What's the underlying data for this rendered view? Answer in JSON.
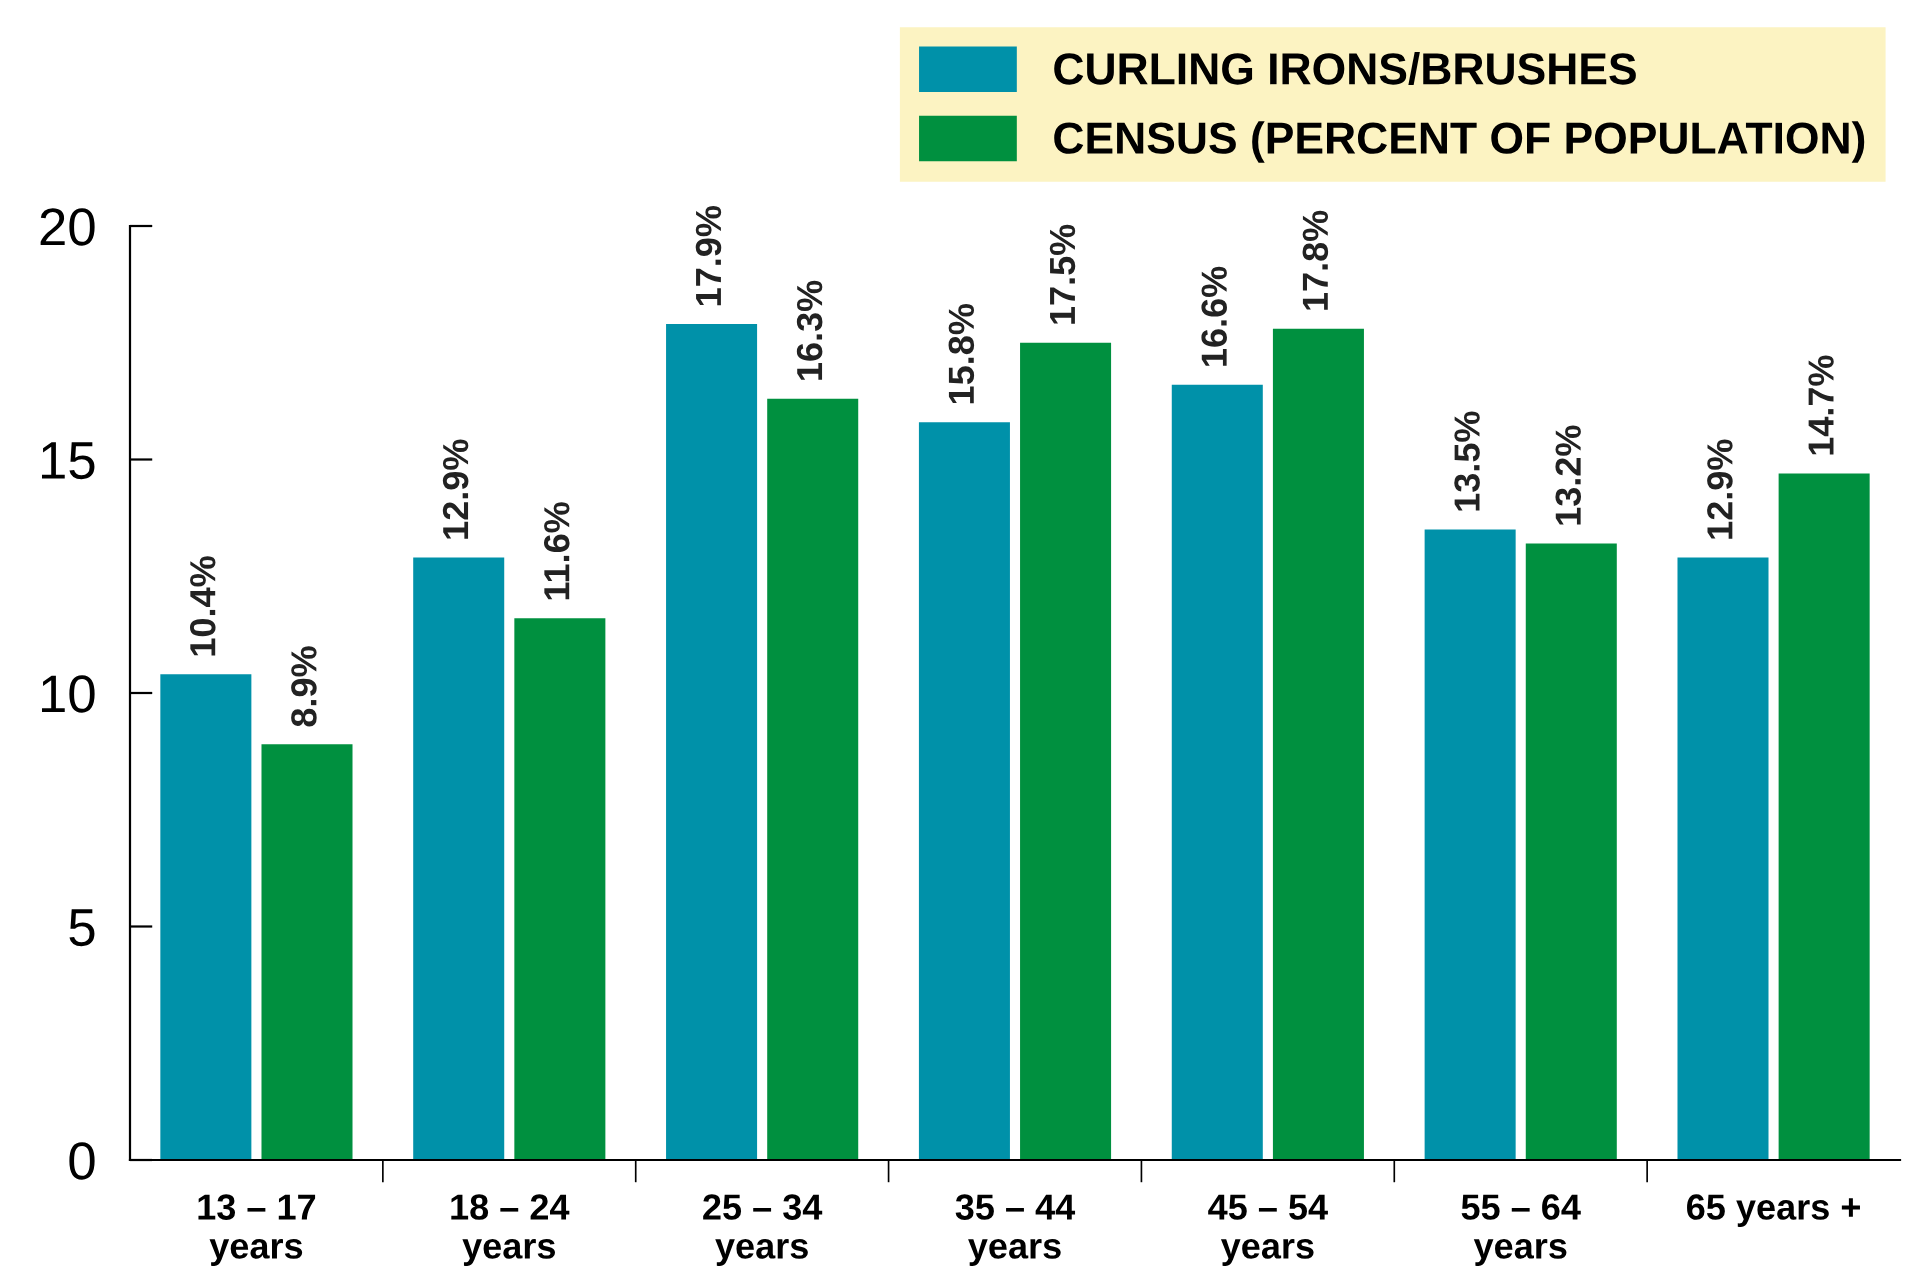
{
  "chart_data": {
    "type": "bar",
    "categories": [
      "13 – 17\nyears",
      "18 – 24\nyears",
      "25 – 34\nyears",
      "35 – 44\nyears",
      "45 – 54\nyears",
      "55 – 64\nyears",
      "65 years +"
    ],
    "series": [
      {
        "name": "CURLING IRONS/BRUSHES",
        "color": "#0091a9",
        "values": [
          10.4,
          12.9,
          17.9,
          15.8,
          16.6,
          13.5,
          12.9
        ],
        "value_labels": [
          "10.4%",
          "12.9%",
          "17.9%",
          "15.8%",
          "16.6%",
          "13.5%",
          "12.9%"
        ]
      },
      {
        "name": "CENSUS (PERCENT OF POPULATION)",
        "color": "#00903f",
        "values": [
          8.9,
          11.6,
          16.3,
          17.5,
          17.8,
          13.2,
          14.7
        ],
        "value_labels": [
          "8.9%",
          "11.6%",
          "16.3%",
          "17.5%",
          "17.8%",
          "13.2%",
          "14.7%"
        ]
      }
    ],
    "ylim": [
      0,
      20
    ],
    "yticks": [
      0,
      5,
      10,
      15,
      20
    ],
    "grid": false,
    "legend": "top right"
  }
}
